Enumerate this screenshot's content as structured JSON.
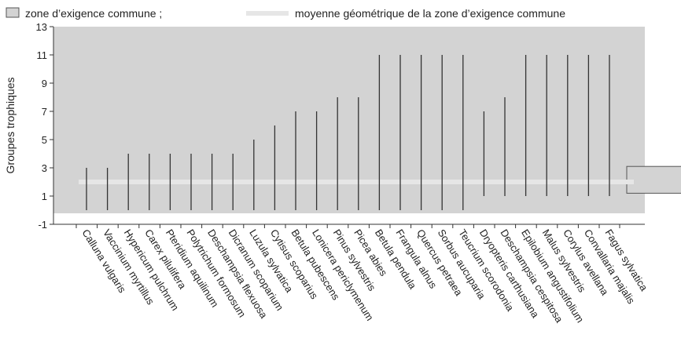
{
  "chart_data": {
    "type": "range",
    "legend": {
      "zone": "zone d’exigence commune ;",
      "mean": "moyenne géométrique de la zone d’exigence commune"
    },
    "ylabel": "Groupes trophiques",
    "categories": [
      "Calluna vulgaris",
      "Vaccinium myrtillus",
      "Hypericum pulchrum",
      "Carex pilulifera",
      "Pteridium aquilinum",
      "Polytrichum formosum",
      "Deschampsia flexuosa",
      "Dicranum scoparium",
      "Luzula sylvatica",
      "Cytisus scoparius",
      "Betula pubescens",
      "Lonicera periclymenum",
      "Pinus sylvestris",
      "Picea abies",
      "Betula pendula",
      "Frangula alnus",
      "Quercus petraea",
      "Sorbus aucuparia",
      "Teucrium scorodonia",
      "Dryopteris carthusiana",
      "Deschampsia cespitosa",
      "Epilobium angustifolium",
      "Malus sylvestris",
      "Corylus avellana",
      "Convallaria majalis",
      "Fagus sylvatica"
    ],
    "low": [
      0,
      0,
      0,
      0,
      0,
      0,
      0,
      0,
      0,
      0,
      0,
      0,
      0,
      0,
      0,
      0,
      0,
      0,
      0,
      1,
      1,
      1,
      1,
      1,
      1,
      1
    ],
    "high": [
      3,
      3,
      4,
      4,
      4,
      4,
      4,
      4,
      5,
      6,
      7,
      7,
      8,
      8,
      11,
      11,
      11,
      11,
      11,
      7,
      8,
      11,
      11,
      11,
      11,
      11
    ],
    "mean": 2,
    "common_zone": [
      1.2,
      3.1
    ],
    "ylim": [
      -1,
      13
    ],
    "yticks": [
      -1,
      1,
      3,
      5,
      7,
      9,
      11,
      13
    ],
    "color": "#333333",
    "zone_color": "#d3d3d3",
    "mean_color": "#e6e6e6"
  }
}
